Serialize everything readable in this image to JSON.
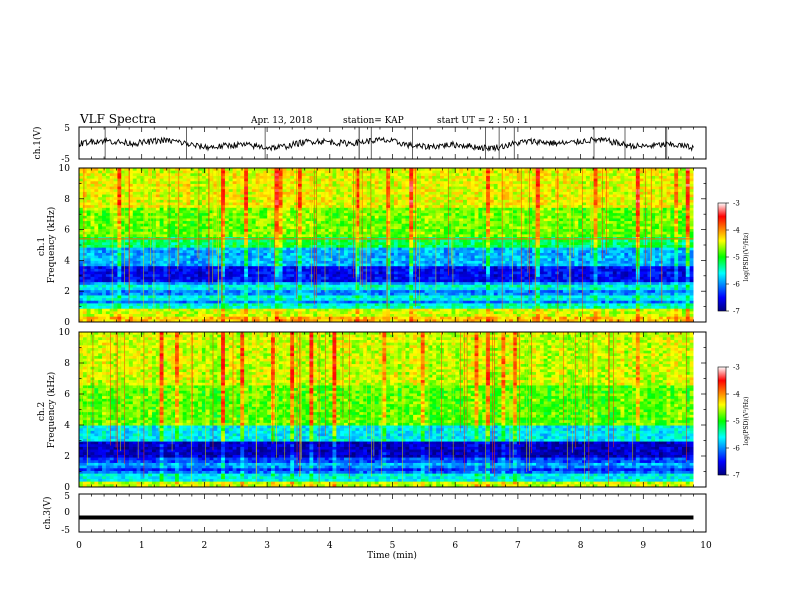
{
  "header": {
    "title": "VLF Spectra",
    "date": "Apr. 13, 2018",
    "station": "station= KAP",
    "start_time": "start  UT =   2 : 50 : 1"
  },
  "chart_data": [
    {
      "type": "line",
      "panel": "ch1-waveform",
      "ylabel": "ch.1(V)",
      "ylim": [
        -5,
        5
      ],
      "yticks": [
        "5",
        "-5"
      ],
      "xlim": [
        0,
        10
      ],
      "description_level": "noisy signal centred near 0 V, swing about ±2 V"
    },
    {
      "type": "heatmap",
      "panel": "ch1-spectrogram",
      "ylabel": "ch.1\nFrequency (kHz)",
      "ylim": [
        0,
        10
      ],
      "yticks": [
        "0",
        "2",
        "4",
        "6",
        "8",
        "10"
      ],
      "xlim": [
        0,
        10
      ],
      "data_end_min": 9.8,
      "horizontal_line_khz": 5.4,
      "colorbar": {
        "label": "log(PSD)(V²/Hz)",
        "range": [
          -7,
          -3
        ],
        "ticks": [
          "-3",
          "-4",
          "-5",
          "-6",
          "-7"
        ]
      }
    },
    {
      "type": "heatmap",
      "panel": "ch2-spectrogram",
      "ylabel": "ch.2\nFrequency (kHz)",
      "ylim": [
        0,
        10
      ],
      "yticks": [
        "0",
        "2",
        "4",
        "6",
        "8",
        "10"
      ],
      "xlim": [
        0,
        10
      ],
      "data_end_min": 9.8,
      "colorbar": {
        "label": "log(PSD)(V²/Hz)",
        "range": [
          -7,
          -3
        ],
        "ticks": [
          "-3",
          "-4",
          "-5",
          "-6",
          "-7"
        ]
      }
    },
    {
      "type": "line",
      "panel": "ch3-waveform",
      "ylabel": "ch.3(V)",
      "ylim": [
        -5,
        5
      ],
      "yticks": [
        "5",
        "0",
        "-5"
      ],
      "xlim": [
        0,
        10
      ],
      "x": [
        0,
        9.8
      ],
      "y": [
        -1.2,
        -1.2
      ]
    }
  ],
  "xaxis": {
    "label": "Time (min)",
    "ticks": [
      "0",
      "1",
      "2",
      "3",
      "4",
      "5",
      "6",
      "7",
      "8",
      "9",
      "10"
    ]
  },
  "colors": {
    "high": "#ff0000",
    "mid": "#00ff00",
    "low": "#0000aa",
    "axis": "#000000"
  }
}
